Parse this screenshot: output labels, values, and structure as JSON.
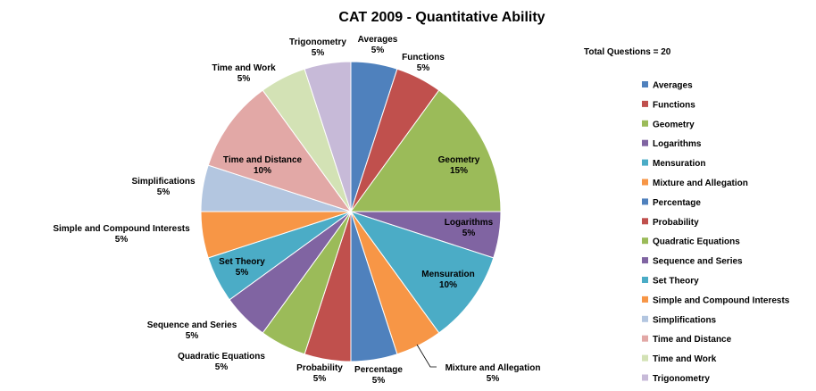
{
  "chart_data": {
    "type": "pie",
    "title": "CAT 2009 - Quantitative Ability",
    "annotation": "Total Questions = 20",
    "legend_position": "right",
    "slices": [
      {
        "name": "Averages",
        "value": 5,
        "label": "5%",
        "color": "#4F81BD"
      },
      {
        "name": "Functions",
        "value": 5,
        "label": "5%",
        "color": "#C0504D"
      },
      {
        "name": "Geometry",
        "value": 15,
        "label": "15%",
        "color": "#9BBB59"
      },
      {
        "name": "Logarithms",
        "value": 5,
        "label": "5%",
        "color": "#8064A2"
      },
      {
        "name": "Mensuration",
        "value": 10,
        "label": "10%",
        "color": "#4BACC6"
      },
      {
        "name": "Mixture and Allegation",
        "value": 5,
        "label": "5%",
        "color": "#F79646"
      },
      {
        "name": "Percentage",
        "value": 5,
        "label": "5%",
        "color": "#4F81BD"
      },
      {
        "name": "Probability",
        "value": 5,
        "label": "5%",
        "color": "#C0504D"
      },
      {
        "name": "Quadratic Equations",
        "value": 5,
        "label": "5%",
        "color": "#9BBB59"
      },
      {
        "name": "Sequence and Series",
        "value": 5,
        "label": "5%",
        "color": "#8064A2"
      },
      {
        "name": "Set Theory",
        "value": 5,
        "label": "5%",
        "color": "#4BACC6"
      },
      {
        "name": "Simple and Compound Interests",
        "value": 5,
        "label": "5%",
        "color": "#F79646"
      },
      {
        "name": "Simplifications",
        "value": 5,
        "label": "5%",
        "color": "#B3C6E0"
      },
      {
        "name": "Time and Distance",
        "value": 10,
        "label": "10%",
        "color": "#E2A8A6"
      },
      {
        "name": "Time and Work",
        "value": 5,
        "label": "5%",
        "color": "#D3E2B5"
      },
      {
        "name": "Trigonometry",
        "value": 5,
        "label": "5%",
        "color": "#C7BAD8"
      }
    ]
  }
}
